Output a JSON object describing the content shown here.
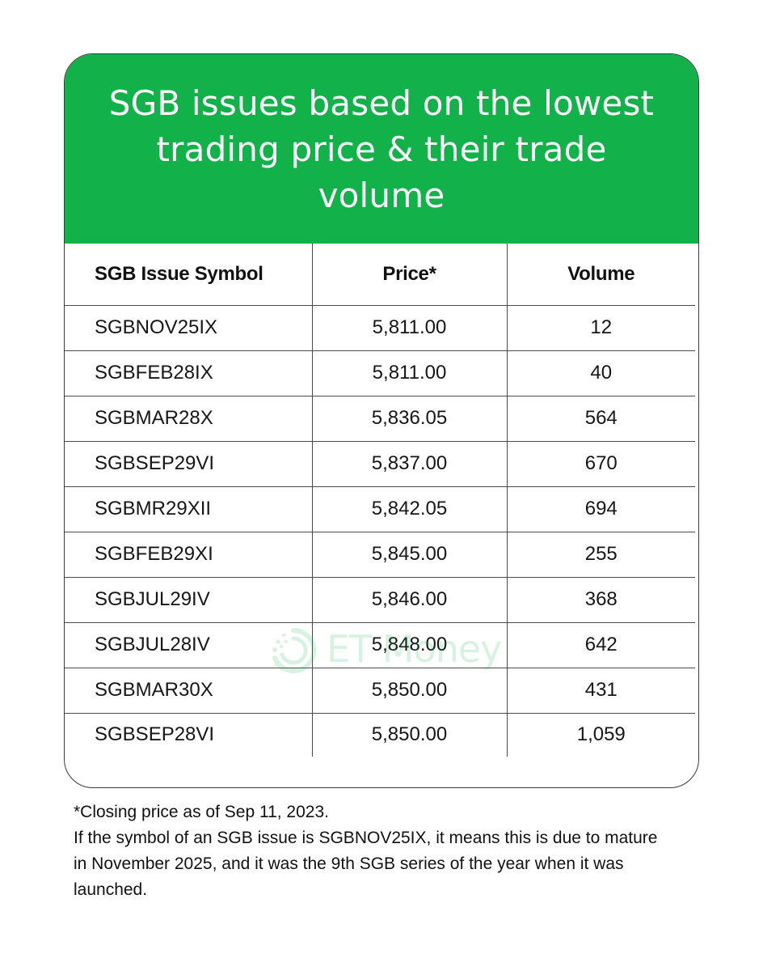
{
  "title": "SGB issues based on the lowest trading price & their trade volume",
  "watermark": {
    "brand": "ET Money",
    "color": "#12b14a"
  },
  "colors": {
    "header_bg": "#12b14a",
    "header_text": "#ffffff",
    "border": "#4a4a4a"
  },
  "table": {
    "headers": [
      "SGB Issue Symbol",
      "Price*",
      "Volume"
    ],
    "rows": [
      {
        "symbol": "SGBNOV25IX",
        "price": "5,811.00",
        "volume": "12"
      },
      {
        "symbol": "SGBFEB28IX",
        "price": "5,811.00",
        "volume": "40"
      },
      {
        "symbol": "SGBMAR28X",
        "price": "5,836.05",
        "volume": "564"
      },
      {
        "symbol": "SGBSEP29VI",
        "price": "5,837.00",
        "volume": "670"
      },
      {
        "symbol": "SGBMR29XII",
        "price": "5,842.05",
        "volume": "694"
      },
      {
        "symbol": "SGBFEB29XI",
        "price": "5,845.00",
        "volume": "255"
      },
      {
        "symbol": "SGBJUL29IV",
        "price": "5,846.00",
        "volume": "368"
      },
      {
        "symbol": "SGBJUL28IV",
        "price": "5,848.00",
        "volume": "642"
      },
      {
        "symbol": "SGBMAR30X",
        "price": "5,850.00",
        "volume": "431"
      },
      {
        "symbol": "SGBSEP28VI",
        "price": "5,850.00",
        "volume": "1,059"
      }
    ]
  },
  "footnotes": [
    "*Closing price as of Sep 11, 2023.",
    "If the symbol of an SGB issue is SGBNOV25IX, it means this is due to mature in November 2025, and it was the 9th SGB series of the year when it was launched."
  ]
}
